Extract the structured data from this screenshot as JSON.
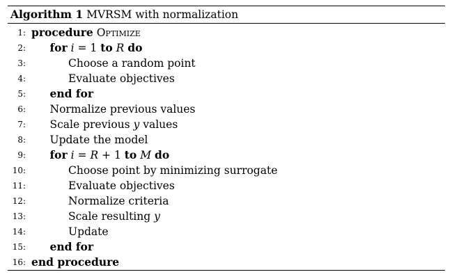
{
  "algorithm": {
    "label": "Algorithm 1",
    "title": "MVRSM with normalization",
    "lines": [
      {
        "no": "1:",
        "indent": 0,
        "segments": [
          {
            "t": "procedure",
            "s": "kw"
          },
          {
            "t": " "
          },
          {
            "t": "Optimize",
            "s": "sc"
          }
        ]
      },
      {
        "no": "2:",
        "indent": 1,
        "segments": [
          {
            "t": "for",
            "s": "kw"
          },
          {
            "t": " "
          },
          {
            "t": "i",
            "s": "math"
          },
          {
            "t": " = 1 "
          },
          {
            "t": "to",
            "s": "kw"
          },
          {
            "t": " "
          },
          {
            "t": "R",
            "s": "math"
          },
          {
            "t": " "
          },
          {
            "t": "do",
            "s": "kw"
          }
        ]
      },
      {
        "no": "3:",
        "indent": 2,
        "segments": [
          {
            "t": "Choose a random point"
          }
        ]
      },
      {
        "no": "4:",
        "indent": 2,
        "segments": [
          {
            "t": "Evaluate objectives"
          }
        ]
      },
      {
        "no": "5:",
        "indent": 1,
        "segments": [
          {
            "t": "end for",
            "s": "kw"
          }
        ]
      },
      {
        "no": "6:",
        "indent": 1,
        "segments": [
          {
            "t": "Normalize previous values"
          }
        ]
      },
      {
        "no": "7:",
        "indent": 1,
        "segments": [
          {
            "t": "Scale previous "
          },
          {
            "t": "y",
            "s": "math"
          },
          {
            "t": " values"
          }
        ]
      },
      {
        "no": "8:",
        "indent": 1,
        "segments": [
          {
            "t": "Update the model"
          }
        ]
      },
      {
        "no": "9:",
        "indent": 1,
        "segments": [
          {
            "t": "for",
            "s": "kw"
          },
          {
            "t": " "
          },
          {
            "t": "i",
            "s": "math"
          },
          {
            "t": " = "
          },
          {
            "t": "R",
            "s": "math"
          },
          {
            "t": " + 1 "
          },
          {
            "t": "to",
            "s": "kw"
          },
          {
            "t": " "
          },
          {
            "t": "M",
            "s": "math"
          },
          {
            "t": " "
          },
          {
            "t": "do",
            "s": "kw"
          }
        ]
      },
      {
        "no": "10:",
        "indent": 2,
        "segments": [
          {
            "t": "Choose point by minimizing surrogate"
          }
        ]
      },
      {
        "no": "11:",
        "indent": 2,
        "segments": [
          {
            "t": "Evaluate objectives"
          }
        ]
      },
      {
        "no": "12:",
        "indent": 2,
        "segments": [
          {
            "t": "Normalize criteria"
          }
        ]
      },
      {
        "no": "13:",
        "indent": 2,
        "segments": [
          {
            "t": "Scale resulting "
          },
          {
            "t": "y",
            "s": "math"
          }
        ]
      },
      {
        "no": "14:",
        "indent": 2,
        "segments": [
          {
            "t": "Update"
          }
        ]
      },
      {
        "no": "15:",
        "indent": 1,
        "segments": [
          {
            "t": "end for",
            "s": "kw"
          }
        ]
      },
      {
        "no": "16:",
        "indent": 0,
        "segments": [
          {
            "t": "end procedure",
            "s": "kw"
          }
        ]
      }
    ]
  }
}
